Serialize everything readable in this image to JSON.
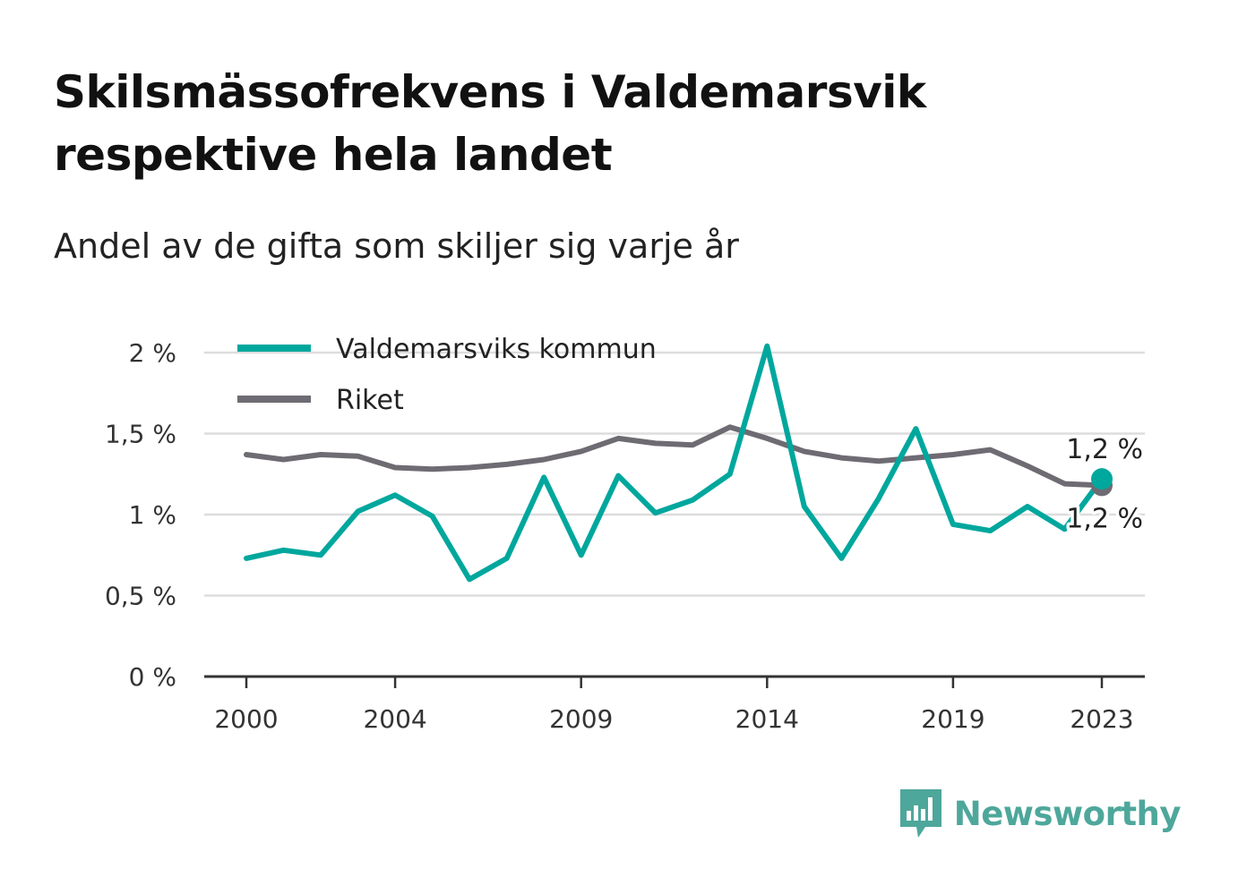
{
  "header": {
    "title": "Skilsmässofrekvens i Valdemarsvik respektive hela landet",
    "subtitle": "Andel av de gifta som skiljer sig varje år"
  },
  "brand": {
    "name": "Newsworthy",
    "icon": "bar-chart-speech-bubble-icon",
    "color": "#4ea79b"
  },
  "chart_data": {
    "type": "line",
    "title": "Skilsmässofrekvens i Valdemarsvik respektive hela landet",
    "subtitle": "Andel av de gifta som skiljer sig varje år",
    "xlabel": "",
    "ylabel": "",
    "x": [
      2000,
      2001,
      2002,
      2003,
      2004,
      2005,
      2006,
      2007,
      2008,
      2009,
      2010,
      2011,
      2012,
      2013,
      2014,
      2015,
      2016,
      2017,
      2018,
      2019,
      2020,
      2021,
      2022,
      2023
    ],
    "x_ticks": [
      2000,
      2004,
      2009,
      2014,
      2019,
      2023
    ],
    "x_tick_labels": [
      "2000",
      "2004",
      "2009",
      "2014",
      "2019",
      "2023"
    ],
    "ylim": [
      0,
      2
    ],
    "y_ticks": [
      0,
      0.5,
      1,
      1.5,
      2
    ],
    "y_tick_labels": [
      "0 %",
      "0,5 %",
      "1 %",
      "1,5 %",
      "2 %"
    ],
    "grid": true,
    "legend_position": "top-left",
    "series": [
      {
        "name": "Valdemarsviks kommun",
        "color": "#00a79d",
        "values": [
          0.73,
          0.78,
          0.75,
          1.02,
          1.12,
          0.99,
          0.6,
          0.73,
          1.23,
          0.75,
          1.24,
          1.01,
          1.09,
          1.25,
          2.04,
          1.05,
          0.73,
          1.1,
          1.53,
          0.94,
          0.9,
          1.05,
          0.91,
          1.22
        ],
        "end_label": "1,2 %"
      },
      {
        "name": "Riket",
        "color": "#6e6b73",
        "values": [
          1.37,
          1.34,
          1.37,
          1.36,
          1.29,
          1.28,
          1.29,
          1.31,
          1.34,
          1.39,
          1.47,
          1.44,
          1.43,
          1.54,
          1.47,
          1.39,
          1.35,
          1.33,
          1.35,
          1.37,
          1.4,
          1.3,
          1.19,
          1.18
        ],
        "end_label": "1,2 %"
      }
    ]
  }
}
